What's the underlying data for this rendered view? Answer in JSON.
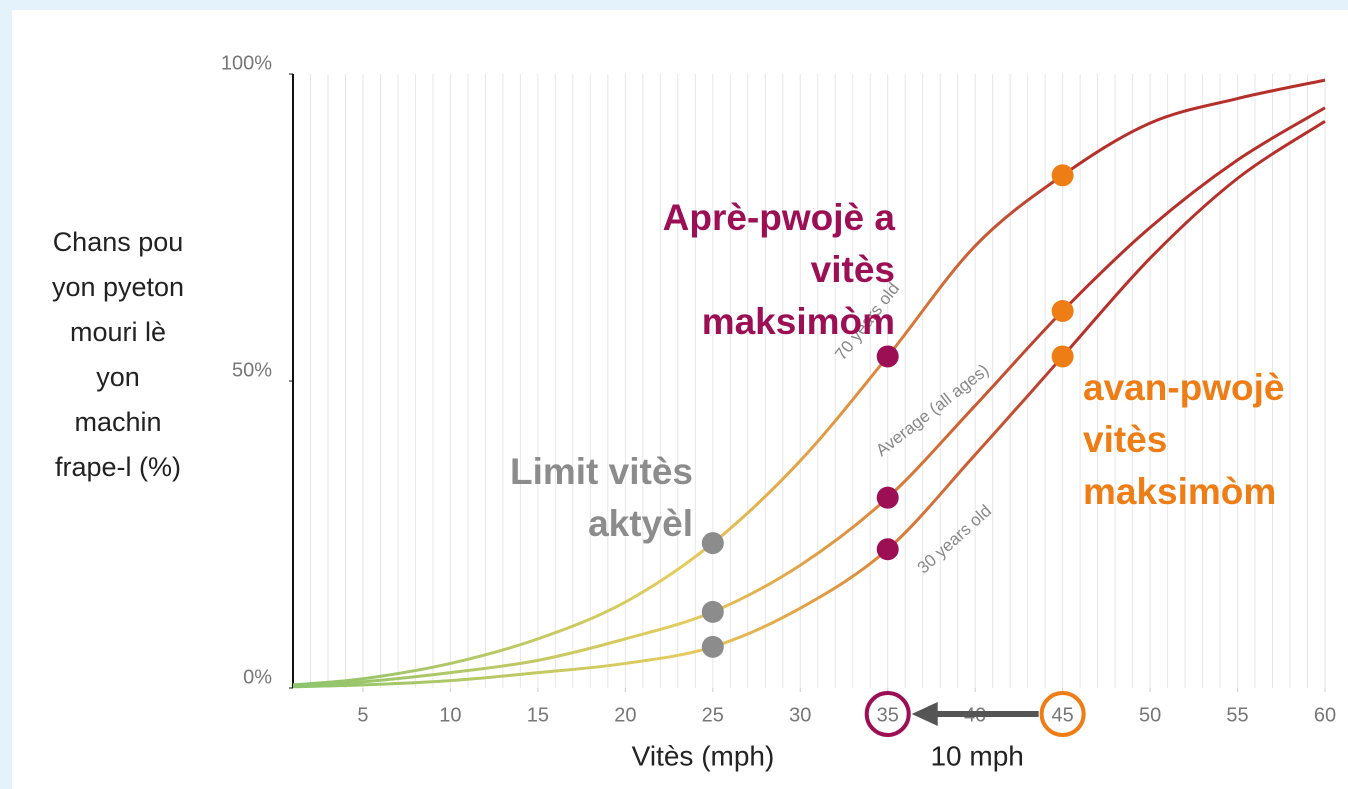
{
  "chart_data": {
    "type": "line",
    "xlabel": "Vitès (mph)",
    "ylabel_lines": [
      "Chans pou",
      "yon pyeton",
      "mouri lè",
      "yon",
      "machin",
      "frape-l (%)"
    ],
    "x": [
      1,
      5,
      10,
      15,
      20,
      25,
      30,
      35,
      40,
      45,
      50,
      55,
      60
    ],
    "series": [
      {
        "name": "70 years old",
        "values": [
          0.5,
          1.5,
          4,
          8,
          14,
          23.6,
          37,
          54,
          72,
          83.5,
          92,
          96,
          99
        ]
      },
      {
        "name": "Average (all ages)",
        "values": [
          0.3,
          1,
          2.5,
          4.5,
          8,
          12.4,
          20,
          31,
          46,
          61.4,
          75,
          86,
          94.5
        ]
      },
      {
        "name": "30 years old",
        "values": [
          0.2,
          0.5,
          1.2,
          2.5,
          4,
          6.7,
          13,
          22.6,
          38,
          54,
          70,
          83,
          92.3
        ]
      }
    ],
    "gradient_colors": [
      "#8cc46e",
      "#e5cc5c",
      "#df8a3c",
      "#b5302b"
    ],
    "xlim": [
      1,
      60
    ],
    "ylim": [
      0,
      100
    ],
    "xticks": [
      5,
      10,
      15,
      20,
      25,
      30,
      35,
      40,
      45,
      50,
      55,
      60
    ],
    "yticks": [
      {
        "value": 0,
        "label": "0%"
      },
      {
        "value": 50,
        "label": "50%"
      },
      {
        "value": 100,
        "label": "100%"
      }
    ],
    "minor_grid_step": 1,
    "markers": [
      {
        "x": 25,
        "color": "#8c8c8c",
        "ring": false
      },
      {
        "x": 35,
        "color": "#9c0f55",
        "ring": true
      },
      {
        "x": 45,
        "color": "#ee7d16",
        "ring": true
      }
    ],
    "annotations": [
      {
        "lines": [
          "Aprè-pwojè a",
          "vitès",
          "maksimòm"
        ],
        "color": "#9c0f55"
      },
      {
        "lines": [
          "Limit vitès",
          "aktyèl"
        ],
        "color": "#8c8c8c"
      },
      {
        "lines": [
          "avan-pwojè",
          "vitès",
          "maksimòm"
        ],
        "color": "#ee7d16"
      }
    ],
    "arrow": {
      "from": 45,
      "to": 35,
      "label": "10 mph",
      "color": "#555555"
    }
  }
}
